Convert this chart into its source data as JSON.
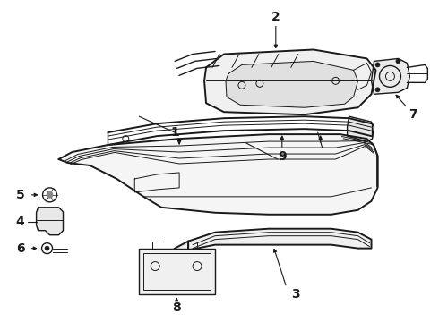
{
  "bg_color": "#ffffff",
  "line_color": "#1a1a1a",
  "figsize": [
    4.9,
    3.6
  ],
  "dpi": 100,
  "label_fontsize": 10
}
